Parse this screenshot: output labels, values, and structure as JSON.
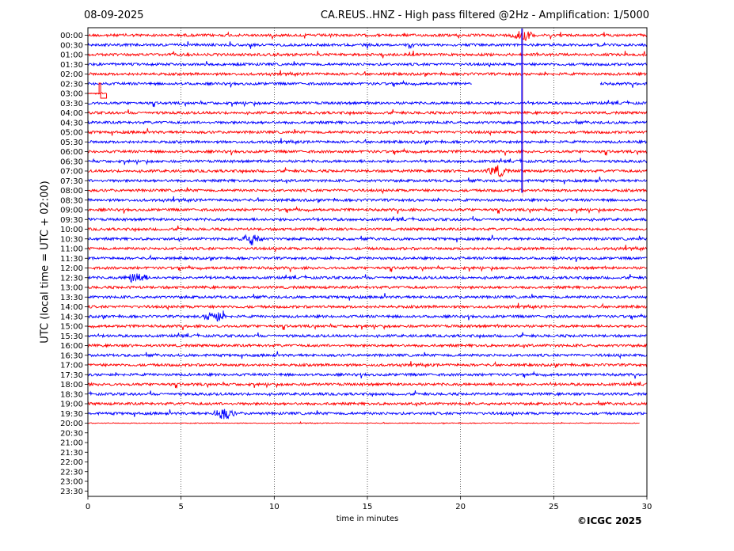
{
  "header": {
    "date": "08-09-2025",
    "title": "CA.REUS..HNZ - High pass filtered @2Hz - Amplification: 1/5000"
  },
  "footer": {
    "copyright": "©ICGC 2025"
  },
  "colors": {
    "series_a": "#ff0000",
    "series_b": "#0000ff",
    "axis": "#000000",
    "grid": "#000000"
  },
  "chart_data": {
    "type": "line",
    "xlabel": "time in minutes",
    "ylabel": "UTC (local time = UTC + 02:00)",
    "xlim": [
      0,
      30
    ],
    "x_ticks": [
      0,
      5,
      10,
      15,
      20,
      25,
      30
    ],
    "x_grid": "dotted vertical lines at 5, 10, 15, 20, 25",
    "row_labels": [
      "00:00",
      "00:30",
      "01:00",
      "01:30",
      "02:00",
      "02:30",
      "03:00",
      "03:30",
      "04:00",
      "04:30",
      "05:00",
      "05:30",
      "06:00",
      "06:30",
      "07:00",
      "07:30",
      "08:00",
      "08:30",
      "09:00",
      "09:30",
      "10:00",
      "10:30",
      "11:00",
      "11:30",
      "12:00",
      "12:30",
      "13:00",
      "13:30",
      "14:00",
      "14:30",
      "15:00",
      "15:30",
      "16:00",
      "16:30",
      "17:00",
      "17:30",
      "18:00",
      "18:30",
      "19:00",
      "19:30",
      "20:00",
      "20:30",
      "21:00",
      "21:30",
      "22:00",
      "22:30",
      "23:00",
      "23:30"
    ],
    "trace_color_pattern": "alternating red / blue by row, starting red at 00:00",
    "traces_recorded_through": "20:00",
    "last_trace_end_minute": 29.6,
    "data_gaps": [
      {
        "row": "02:30",
        "from_minute": 20.6,
        "to_minute": 27.5
      },
      {
        "row": "03:00",
        "from_minute": 1.0,
        "to_minute": 30
      }
    ],
    "notable_events": [
      {
        "row": "00:00",
        "minute": 23.3,
        "description": "large vertical spike spanning rows 00:00 to 08:00"
      },
      {
        "row": "03:00",
        "minute": 0.7,
        "description": "step offset at start of trace"
      },
      {
        "row": "07:00",
        "minute": 22.0,
        "description": "local burst"
      },
      {
        "row": "10:30",
        "minute": 8.8,
        "description": "extended burst"
      },
      {
        "row": "12:30",
        "minute": 2.6,
        "description": "burst"
      },
      {
        "row": "14:30",
        "minute": 6.8,
        "description": "burst"
      },
      {
        "row": "19:30",
        "minute": 7.3,
        "description": "burst"
      }
    ]
  }
}
